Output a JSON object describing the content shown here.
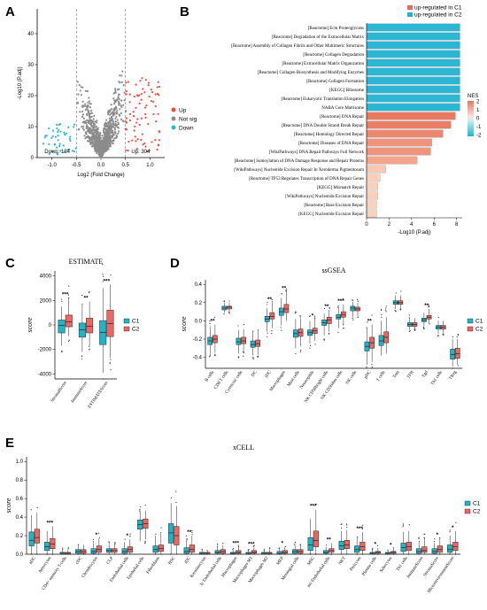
{
  "colors": {
    "c1": "#1fb5c9",
    "c2": "#f06560",
    "grey": "#8c8c8c",
    "up": "#f14b3c",
    "down": "#2bb7d4"
  },
  "panel_letters": [
    "A",
    "B",
    "C",
    "D",
    "E"
  ],
  "chart_data": [
    {
      "id": "A",
      "type": "scatter",
      "title": "",
      "xlabel": "Log2 (Fold Change)",
      "ylabel": "-Log10 (P.adj)",
      "xlim": [
        -1.3,
        1.3
      ],
      "ylim": [
        0,
        48
      ],
      "xticks": [
        "-1.0",
        "-0.5",
        "0.0",
        "0.5",
        "1.0"
      ],
      "yticks": [
        "0",
        "10",
        "20",
        "30",
        "40"
      ],
      "threshold_x": [
        -0.5,
        0.5
      ],
      "legend": [
        "Up",
        "Not sig",
        "Down"
      ],
      "down_label": "Down: 134",
      "up_label": "Up: 304"
    },
    {
      "id": "B",
      "type": "bar",
      "legend": [
        "up-regulated in C1",
        "up-regulated in C2"
      ],
      "nes_title": "NES",
      "nes_ticks": [
        "2",
        "1",
        "0",
        "-1",
        "-2"
      ],
      "xlabel": "-Log10 (P.adj)",
      "xticks": [
        "0",
        "2",
        "4",
        "6",
        "8"
      ],
      "xlim": [
        0,
        8.5
      ],
      "categories": [
        "[Reactome] Ecm Proteoglycans",
        "[Reactome] Degradation of the Extracellular Matrix",
        "[Reactome] Assembly of Collagen Fibrils and Other Multimeric Structures",
        "[Reactome] Collagen Degradation",
        "[Reactome] Extracellular Matrix Organization",
        "[Reactome] Collagen Biosynthesis and Modifying Enzymes",
        "[Reactome] Collagen Formation",
        "[KEGG] Ribosome",
        "[Reactome] Eukaryotic Translation Elongation",
        "NABA Core Matrisome",
        "[Reactome] DNA Repair",
        "[Reactome] DNA Double Strand Break Repair",
        "[Reactome] Homology Directed Repair",
        "[Reactome] Diseases of DNA Repair",
        "[WikiPathways] DNA Repair Pathways Full Network",
        "[Reactome] Sumoylation of DNA Damage Response and Repair Proteins",
        "[WikiPathways] Nucleotide Excision Repair In Xeroderma Pigmentosum",
        "[Reactome] TP53 Regulates Transcription of DNA Repair Genes",
        "[KEGG] Mismatch Repair",
        "[WikiPathways] Nucleotide Excision Repair",
        "[Reactome] Base Excision Repair",
        "[KEGG] Nucleotide Excision Repair"
      ],
      "values": [
        8.3,
        8.3,
        8.3,
        8.3,
        8.3,
        8.3,
        8.3,
        8.3,
        8.3,
        8.3,
        7.9,
        7.5,
        6.8,
        5.8,
        5.7,
        4.5,
        1.7,
        1.2,
        1.0,
        1.0,
        0.9,
        0.9
      ],
      "group": [
        "C2",
        "C2",
        "C2",
        "C2",
        "C2",
        "C2",
        "C2",
        "C2",
        "C2",
        "C2",
        "C1",
        "C1",
        "C1",
        "C1",
        "C1",
        "C1",
        "C1",
        "C1",
        "C1",
        "C1",
        "C1",
        "C1"
      ]
    },
    {
      "id": "C",
      "type": "box",
      "title": "ESTIMATE",
      "ylabel": "score",
      "ylim": [
        -4400,
        4400
      ],
      "yticks": [
        "-4000",
        "-2000",
        "0",
        "2000",
        "4000"
      ],
      "categories": [
        "StromalScore",
        "ImmuneScore",
        "ESTIMATEScore"
      ],
      "significance": [
        "***",
        "**",
        "***"
      ],
      "legend": [
        "C1",
        "C2"
      ],
      "series": [
        {
          "name": "C1",
          "boxes": [
            [
              -1700,
              -650,
              -50,
              400,
              1500
            ],
            [
              -2200,
              -1000,
              -400,
              150,
              1600
            ],
            [
              -3900,
              -1600,
              -600,
              350,
              3000
            ]
          ]
        },
        {
          "name": "C2",
          "boxes": [
            [
              -900,
              -150,
              250,
              800,
              2200
            ],
            [
              -1700,
              -650,
              -100,
              550,
              1900
            ],
            [
              -2700,
              -950,
              100,
              1200,
              3300
            ]
          ]
        }
      ]
    },
    {
      "id": "D",
      "type": "box",
      "title": "ssGSEA",
      "ylabel": "score",
      "ylim": [
        -0.52,
        0.45
      ],
      "yticks": [
        "-0.4",
        "-0.2",
        "0.0",
        "0.2",
        "0.4"
      ],
      "categories": [
        "B cells",
        "CD8 T cells",
        "Cytotoxic cells",
        "DC",
        "iDC",
        "Macrophages",
        "Mast cells",
        "Neutrophils",
        "NK CD56bright cells",
        "NK CD56dim cells",
        "NK cells",
        "pDC",
        "T cells",
        "Tem",
        "TFH",
        "Tgd",
        "Th1 cells",
        "TReg"
      ],
      "significance": [
        "**",
        "",
        "",
        "",
        "**",
        "**",
        "",
        "*",
        "**",
        "***",
        "",
        "**",
        "",
        "",
        "",
        "**",
        "",
        ""
      ],
      "legend": [
        "C1",
        "C2"
      ],
      "series": [
        {
          "name": "C1",
          "boxes": [
            [
              -0.38,
              -0.26,
              -0.22,
              -0.18,
              -0.06
            ],
            [
              0.09,
              0.12,
              0.14,
              0.16,
              0.2
            ],
            [
              -0.36,
              -0.26,
              -0.23,
              -0.19,
              -0.1
            ],
            [
              -0.38,
              -0.29,
              -0.26,
              -0.22,
              -0.12
            ],
            [
              -0.12,
              -0.01,
              0.02,
              0.05,
              0.14
            ],
            [
              -0.05,
              0.06,
              0.1,
              0.14,
              0.25
            ],
            [
              -0.3,
              -0.18,
              -0.14,
              -0.1,
              0.02
            ],
            [
              -0.25,
              -0.16,
              -0.13,
              -0.1,
              0.0
            ],
            [
              -0.16,
              -0.05,
              -0.02,
              0.01,
              0.08
            ],
            [
              -0.08,
              0.02,
              0.04,
              0.07,
              0.14
            ],
            [
              0.04,
              0.11,
              0.14,
              0.16,
              0.21
            ],
            [
              -0.48,
              -0.33,
              -0.28,
              -0.23,
              -0.08
            ],
            [
              -0.38,
              -0.27,
              -0.22,
              -0.16,
              0.0
            ],
            [
              0.13,
              0.18,
              0.2,
              0.22,
              0.28
            ],
            [
              -0.1,
              -0.06,
              -0.04,
              -0.02,
              0.03
            ],
            [
              -0.06,
              -0.01,
              0.01,
              0.03,
              0.09
            ],
            [
              -0.14,
              -0.09,
              -0.07,
              -0.05,
              0.0
            ],
            [
              -0.5,
              -0.42,
              -0.37,
              -0.31,
              -0.2
            ]
          ]
        },
        {
          "name": "C2",
          "boxes": [
            [
              -0.35,
              -0.24,
              -0.2,
              -0.16,
              -0.04
            ],
            [
              0.1,
              0.13,
              0.15,
              0.16,
              0.2
            ],
            [
              -0.34,
              -0.25,
              -0.22,
              -0.18,
              -0.09
            ],
            [
              -0.37,
              -0.28,
              -0.25,
              -0.21,
              -0.11
            ],
            [
              -0.08,
              0.02,
              0.05,
              0.09,
              0.2
            ],
            [
              0.0,
              0.09,
              0.13,
              0.18,
              0.32
            ],
            [
              -0.28,
              -0.17,
              -0.13,
              -0.09,
              0.03
            ],
            [
              -0.22,
              -0.14,
              -0.11,
              -0.08,
              0.02
            ],
            [
              -0.12,
              -0.03,
              0.01,
              0.04,
              0.12
            ],
            [
              -0.04,
              0.04,
              0.07,
              0.1,
              0.18
            ],
            [
              0.05,
              0.11,
              0.13,
              0.15,
              0.2
            ],
            [
              -0.45,
              -0.3,
              -0.24,
              -0.18,
              -0.04
            ],
            [
              -0.36,
              -0.24,
              -0.18,
              -0.12,
              0.04
            ],
            [
              0.13,
              0.18,
              0.2,
              0.22,
              0.28
            ],
            [
              -0.09,
              -0.06,
              -0.04,
              -0.02,
              0.03
            ],
            [
              -0.03,
              0.02,
              0.04,
              0.06,
              0.13
            ],
            [
              -0.13,
              -0.09,
              -0.07,
              -0.05,
              0.0
            ],
            [
              -0.48,
              -0.41,
              -0.36,
              -0.3,
              -0.2
            ]
          ]
        }
      ]
    },
    {
      "id": "E",
      "type": "box",
      "title": "xCELL",
      "ylabel": "score",
      "ylim": [
        0,
        1.05
      ],
      "yticks": [
        "0.0",
        "0.2",
        "0.4",
        "0.6",
        "0.8",
        "1.0"
      ],
      "categories": [
        "aDC",
        "Astrocytes",
        "CD4+ memory T-cells",
        "cDC",
        "Chondrocytes",
        "CLP",
        "Endothelial cells",
        "Epithelial cells",
        "Fibroblasts",
        "HSC",
        "iDC",
        "Keratinocytes",
        "ly Endothelial cells",
        "Macrophages",
        "Macrophages M1",
        "Macrophages M2",
        "MEP",
        "Mesangial cells",
        "MSC",
        "mv Endothelial cells",
        "NKT",
        "Pericytes",
        "Plasma cells",
        "Sebocytes",
        "Th1 cells",
        "ImmuneScore",
        "StromaScore",
        "MicroenvironmentScore"
      ],
      "significance": [
        "",
        "***",
        "",
        "",
        "*",
        "",
        "*",
        "",
        "",
        "",
        "**",
        "",
        "",
        "***",
        "***",
        "",
        "*",
        "",
        "***",
        "**",
        "",
        "***",
        "*",
        "*",
        "",
        "",
        "*",
        "*"
      ],
      "legend": [
        "C1",
        "C2"
      ],
      "series": [
        {
          "name": "C1",
          "boxes": [
            [
              0.0,
              0.09,
              0.15,
              0.24,
              0.42
            ],
            [
              0.0,
              0.04,
              0.08,
              0.13,
              0.25
            ],
            [
              0.0,
              0.0,
              0.01,
              0.02,
              0.05
            ],
            [
              0.0,
              0.01,
              0.03,
              0.05,
              0.1
            ],
            [
              0.0,
              0.01,
              0.03,
              0.06,
              0.12
            ],
            [
              0.0,
              0.02,
              0.04,
              0.06,
              0.11
            ],
            [
              0.0,
              0.01,
              0.03,
              0.06,
              0.13
            ],
            [
              0.14,
              0.27,
              0.32,
              0.37,
              0.46
            ],
            [
              0.0,
              0.02,
              0.05,
              0.09,
              0.2
            ],
            [
              0.0,
              0.12,
              0.23,
              0.33,
              0.55
            ],
            [
              0.0,
              0.01,
              0.03,
              0.07,
              0.15
            ],
            [
              0.0,
              0.0,
              0.01,
              0.02,
              0.04
            ],
            [
              0.0,
              0.01,
              0.02,
              0.04,
              0.08
            ],
            [
              0.0,
              0.0,
              0.01,
              0.02,
              0.05
            ],
            [
              0.0,
              0.0,
              0.01,
              0.02,
              0.04
            ],
            [
              0.0,
              0.0,
              0.01,
              0.02,
              0.04
            ],
            [
              0.0,
              0.0,
              0.01,
              0.03,
              0.06
            ],
            [
              0.0,
              0.01,
              0.03,
              0.05,
              0.1
            ],
            [
              0.0,
              0.04,
              0.1,
              0.18,
              0.38
            ],
            [
              0.0,
              0.01,
              0.02,
              0.04,
              0.08
            ],
            [
              0.0,
              0.05,
              0.09,
              0.14,
              0.25
            ],
            [
              0.0,
              0.02,
              0.05,
              0.09,
              0.18
            ],
            [
              0.0,
              0.0,
              0.01,
              0.02,
              0.05
            ],
            [
              0.0,
              0.0,
              0.01,
              0.02,
              0.04
            ],
            [
              0.0,
              0.03,
              0.07,
              0.12,
              0.24
            ],
            [
              0.0,
              0.01,
              0.03,
              0.06,
              0.13
            ],
            [
              0.0,
              0.01,
              0.03,
              0.06,
              0.12
            ],
            [
              0.0,
              0.02,
              0.05,
              0.1,
              0.2
            ]
          ]
        },
        {
          "name": "C2",
          "boxes": [
            [
              0.0,
              0.12,
              0.18,
              0.27,
              0.45
            ],
            [
              0.0,
              0.06,
              0.11,
              0.17,
              0.3
            ],
            [
              0.0,
              0.0,
              0.01,
              0.02,
              0.05
            ],
            [
              0.0,
              0.01,
              0.03,
              0.05,
              0.1
            ],
            [
              0.0,
              0.02,
              0.05,
              0.09,
              0.17
            ],
            [
              0.0,
              0.02,
              0.04,
              0.06,
              0.11
            ],
            [
              0.0,
              0.02,
              0.05,
              0.08,
              0.16
            ],
            [
              0.16,
              0.28,
              0.33,
              0.38,
              0.47
            ],
            [
              0.0,
              0.03,
              0.06,
              0.1,
              0.22
            ],
            [
              0.0,
              0.1,
              0.2,
              0.3,
              0.52
            ],
            [
              0.0,
              0.02,
              0.05,
              0.1,
              0.2
            ],
            [
              0.0,
              0.0,
              0.01,
              0.02,
              0.04
            ],
            [
              0.0,
              0.01,
              0.03,
              0.05,
              0.1
            ],
            [
              0.0,
              0.01,
              0.02,
              0.04,
              0.08
            ],
            [
              0.0,
              0.01,
              0.02,
              0.04,
              0.07
            ],
            [
              0.0,
              0.0,
              0.01,
              0.02,
              0.05
            ],
            [
              0.0,
              0.01,
              0.02,
              0.04,
              0.08
            ],
            [
              0.0,
              0.01,
              0.03,
              0.05,
              0.1
            ],
            [
              0.0,
              0.08,
              0.15,
              0.25,
              0.48
            ],
            [
              0.0,
              0.02,
              0.04,
              0.06,
              0.12
            ],
            [
              0.0,
              0.06,
              0.1,
              0.15,
              0.26
            ],
            [
              0.0,
              0.04,
              0.08,
              0.13,
              0.24
            ],
            [
              0.0,
              0.01,
              0.02,
              0.03,
              0.07
            ],
            [
              0.0,
              0.01,
              0.02,
              0.03,
              0.06
            ],
            [
              0.0,
              0.04,
              0.08,
              0.13,
              0.25
            ],
            [
              0.0,
              0.02,
              0.04,
              0.08,
              0.16
            ],
            [
              0.0,
              0.02,
              0.05,
              0.09,
              0.17
            ],
            [
              0.0,
              0.04,
              0.08,
              0.13,
              0.25
            ]
          ]
        }
      ]
    }
  ]
}
